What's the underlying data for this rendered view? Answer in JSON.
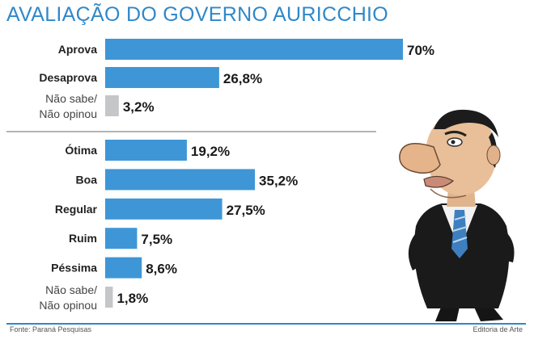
{
  "title": "AVALIAÇÃO DO GOVERNO AURICCHIO",
  "footer": {
    "source": "Fonte: Paraná Pesquisas",
    "credit": "Editoria de Arte"
  },
  "colors": {
    "title": "#2f88c9",
    "bar": "#3e96d6",
    "bar_unknown": "#c4c6c9",
    "divider": "#9c9c9c"
  },
  "chart_data": [
    {
      "type": "bar",
      "orientation": "horizontal",
      "unit": "%",
      "categories": [
        "Aprova",
        "Desaprova",
        "Não sabe/\nNão opinou"
      ],
      "values": [
        70,
        26.8,
        3.2
      ],
      "labels": [
        "70%",
        "26,8%",
        "3,2%"
      ]
    },
    {
      "type": "bar",
      "orientation": "horizontal",
      "unit": "%",
      "categories": [
        "Ótima",
        "Boa",
        "Regular",
        "Ruim",
        "Péssima",
        "Não sabe/\nNão opinou"
      ],
      "values": [
        19.2,
        35.2,
        27.5,
        7.5,
        8.6,
        1.8
      ],
      "labels": [
        "19,2%",
        "35,2%",
        "27,5%",
        "7,5%",
        "8,6%",
        "1,8%"
      ]
    }
  ],
  "illustration": "caricature-of-mayor"
}
